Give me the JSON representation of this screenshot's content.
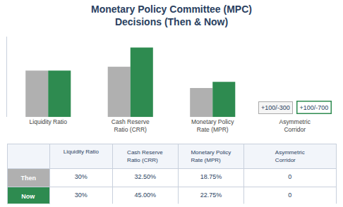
{
  "chart_data": {
    "type": "bar",
    "title": "Monetary Policy Committee (MPC)\nDecisions (Then & Now)",
    "categories": [
      "Liquidity Ratio",
      "Cash Reserve\nRatio (CRR)",
      "Monetary Policy\nRate (MPR)",
      "Asymmetric\nCorridor"
    ],
    "series": [
      {
        "name": "Then",
        "color": "#b0b0b0",
        "values": [
          30,
          32.5,
          18.75,
          0
        ],
        "value_labels": [
          "30%",
          "32.50%",
          "18.75%",
          "0"
        ]
      },
      {
        "name": "Now",
        "color": "#2e8b50",
        "values": [
          30,
          45.0,
          22.75,
          0
        ],
        "value_labels": [
          "30%",
          "45.00%",
          "22.75%",
          "0"
        ]
      }
    ],
    "ylim": [
      0,
      52
    ],
    "grid": false,
    "tick_labels": "x",
    "annotations": [
      {
        "text": "+100/-300",
        "category": "Asymmetric\nCorridor",
        "series": "Then"
      },
      {
        "text": "+100/-700",
        "category": "Asymmetric\nCorridor",
        "series": "Now"
      }
    ]
  }
}
